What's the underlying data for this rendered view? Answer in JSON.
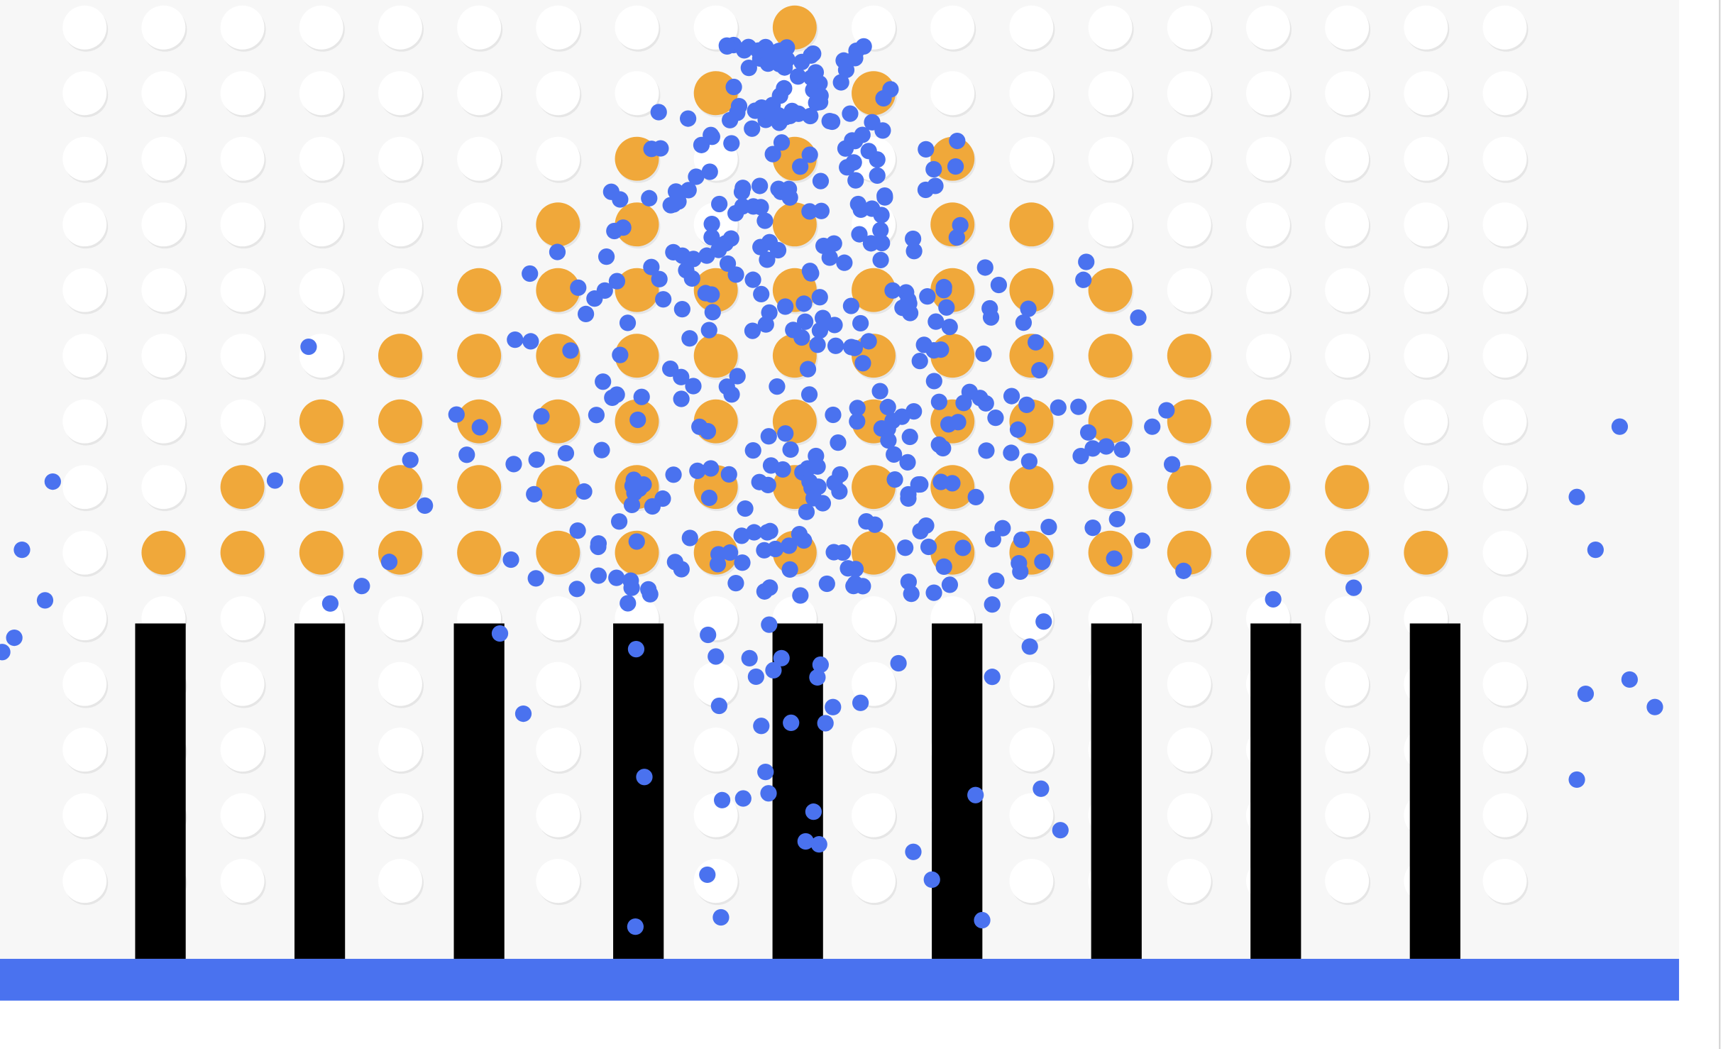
{
  "game": {
    "type": "galton-board",
    "peg_grid": {
      "rows": 14,
      "columns": 19
    },
    "highlighted_peg_rows": [
      [
        9
      ],
      [
        8,
        10
      ],
      [
        7,
        9,
        11
      ],
      [
        6,
        7,
        9,
        11,
        12
      ],
      [
        5,
        6,
        7,
        8,
        9,
        10,
        11,
        12,
        13
      ],
      [
        4,
        5,
        6,
        7,
        8,
        9,
        10,
        11,
        12,
        13,
        14
      ],
      [
        3,
        4,
        5,
        6,
        7,
        8,
        9,
        10,
        11,
        12,
        13,
        14,
        15
      ],
      [
        2,
        3,
        4,
        5,
        6,
        7,
        8,
        9,
        10,
        11,
        12,
        13,
        14,
        15,
        16
      ],
      [
        1,
        2,
        3,
        4,
        5,
        6,
        7,
        8,
        9,
        10,
        11,
        12,
        13,
        14,
        15,
        16,
        17
      ]
    ],
    "bin_dividers": 9,
    "colors": {
      "board_background": "#f7f7f7",
      "page_background": "#ffffff",
      "peg": "#ffffff",
      "peg_shadow": "#e6e6e6",
      "highlighted_peg": "#f0a83a",
      "ball": "#4a72ef",
      "divider": "#000000",
      "floor": "#4a72ef",
      "edge_line": "#cfcfcf"
    }
  }
}
